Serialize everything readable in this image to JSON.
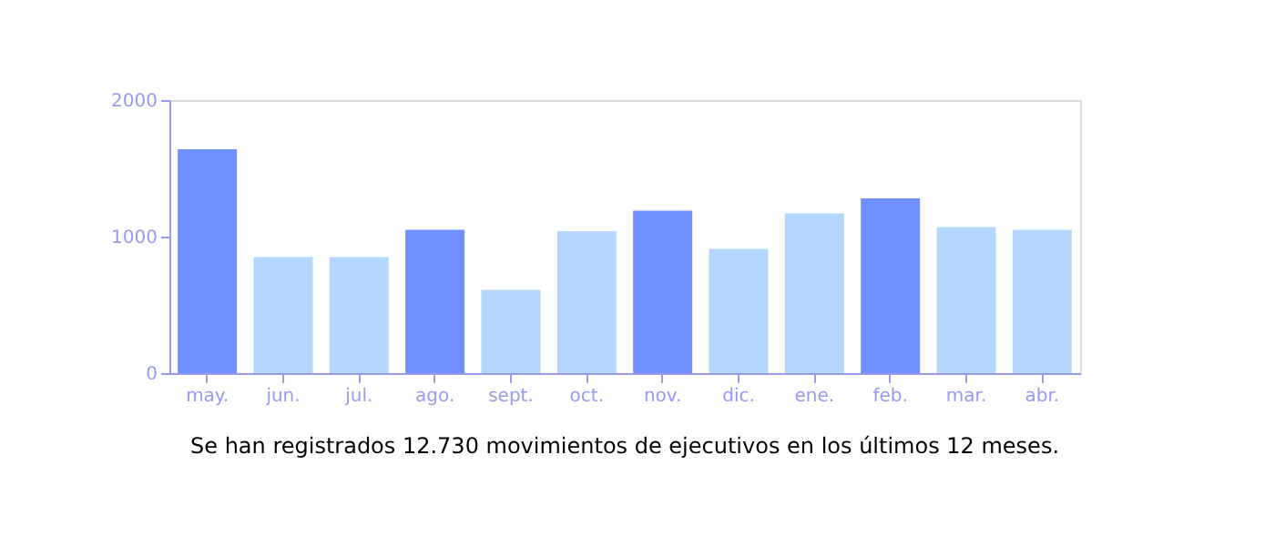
{
  "chart_data": {
    "type": "bar",
    "categories": [
      "may.",
      "jun.",
      "jul.",
      "ago.",
      "sept.",
      "oct.",
      "nov.",
      "dic.",
      "ene.",
      "feb.",
      "mar.",
      "abr."
    ],
    "values": [
      1640,
      850,
      850,
      1050,
      610,
      1040,
      1190,
      910,
      1170,
      1280,
      1070,
      1050
    ],
    "colors": [
      "#7090ff",
      "#b3d7fd",
      "#b3d7fd",
      "#7090ff",
      "#b3d7fd",
      "#b3d7fd",
      "#7090ff",
      "#b3d7fd",
      "#b3d7fd",
      "#7090ff",
      "#b3d7fd",
      "#b3d7fd"
    ],
    "ylim": [
      0,
      2000
    ],
    "yticks": [
      0,
      1000,
      2000
    ],
    "grid": false,
    "annotations": [
      "Se han registrados 12.730 movimientos de ejecutivos en los últimos 12 meses."
    ]
  }
}
